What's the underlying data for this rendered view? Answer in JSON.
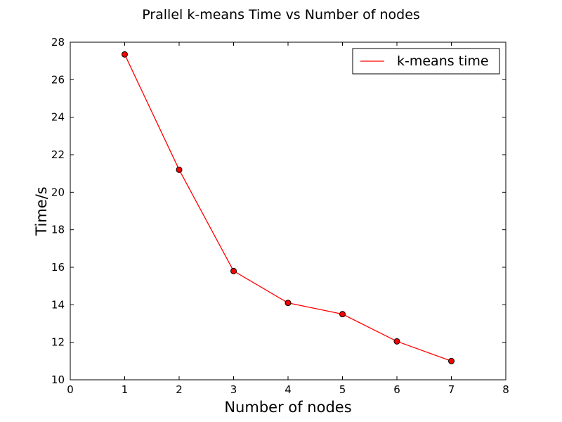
{
  "chart_data": {
    "type": "line",
    "title": "Prallel k-means Time vs Number of nodes",
    "xlabel": "Number of nodes",
    "ylabel": "Time/s",
    "xlim": [
      0,
      8
    ],
    "ylim": [
      10,
      28
    ],
    "xticks": [
      0,
      1,
      2,
      3,
      4,
      5,
      6,
      7,
      8
    ],
    "yticks": [
      10,
      12,
      14,
      16,
      18,
      20,
      22,
      24,
      26,
      28
    ],
    "grid": false,
    "legend_position": "upper-right",
    "series": [
      {
        "name": "k-means time",
        "color": "#ff0000",
        "marker": "circle",
        "x": [
          1,
          2,
          3,
          4,
          5,
          6,
          7
        ],
        "y": [
          27.35,
          21.2,
          15.8,
          14.1,
          13.5,
          12.05,
          11.0
        ]
      }
    ]
  }
}
